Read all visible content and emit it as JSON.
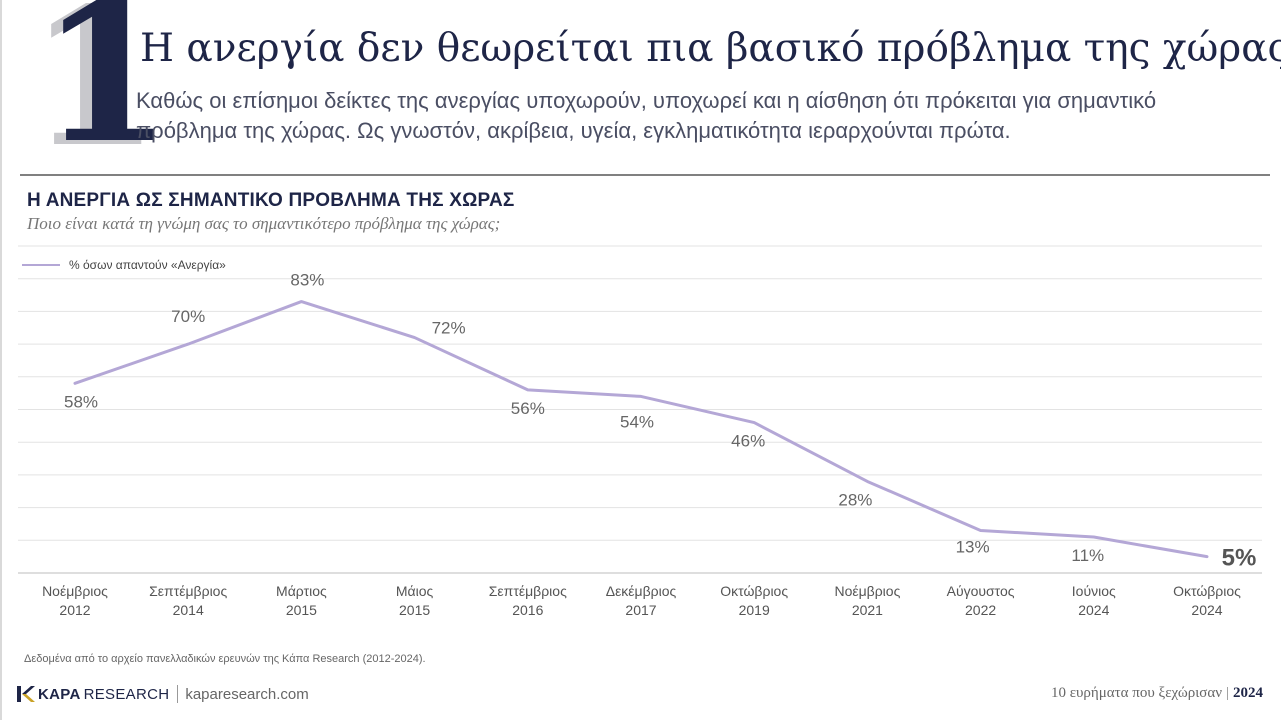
{
  "page": {
    "numeral": "1",
    "headline": "Η ανεργία δεν θεωρείται πια βασικό πρόβλημα της χώρας",
    "lede": "Καθώς οι επίσημοι δείκτες της ανεργίας υποχωρούν, υποχωρεί και η αίσθηση ότι πρόκειται για σημαντικό πρόβλημα της χώρας. Ως γνωστόν, ακρίβεια, υγεία, εγκληματικότητα ιεραρχούνται πρώτα.",
    "footnote": "Δεδομένα από το αρχείο πανελλαδικών ερευνών της Κάπα Research (2012-2024).",
    "brand_kapa": "KAPA",
    "brand_research": "RESEARCH",
    "brand_url": "kaparesearch.com",
    "footer_series": "10 ευρήματα που ξεχώρισαν",
    "footer_separator": "|",
    "footer_year": "2024"
  },
  "colors": {
    "navy": "#1e2547",
    "line": "#b4a7d6",
    "grid": "#e3e3e3",
    "label": "#666666"
  },
  "chart_data": {
    "type": "line",
    "title": "Η ΑΝΕΡΓΙΑ ΩΣ ΣΗΜΑΝΤΙΚΟ ΠΡΟΒΛΗΜΑ ΤΗΣ ΧΩΡΑΣ",
    "subtitle": "Ποιο είναι κατά τη γνώμη σας το σημαντικότερο πρόβλημα της χώρας;",
    "categories": [
      [
        "Νοέμβριος",
        "2012"
      ],
      [
        "Σεπτέμβριος",
        "2014"
      ],
      [
        "Μάρτιος",
        "2015"
      ],
      [
        "Μάιος",
        "2015"
      ],
      [
        "Σεπτέμβριος",
        "2016"
      ],
      [
        "Δεκέμβριος",
        "2017"
      ],
      [
        "Οκτώβριος",
        "2019"
      ],
      [
        "Νοέμβριος",
        "2021"
      ],
      [
        "Αύγουστος",
        "2022"
      ],
      [
        "Ιούνιος",
        "2024"
      ],
      [
        "Οκτώβριος",
        "2024"
      ]
    ],
    "series": [
      {
        "name": "% όσων απαντούν «Ανεργία»",
        "values": [
          58,
          70,
          83,
          72,
          56,
          54,
          46,
          28,
          13,
          11,
          5
        ],
        "labels": [
          "58%",
          "70%",
          "83%",
          "72%",
          "56%",
          "54%",
          "46%",
          "28%",
          "13%",
          "11%",
          "5%"
        ]
      }
    ],
    "ylim": [
      0,
      100
    ],
    "grid": true,
    "legend": "top-left",
    "xlabel": "",
    "ylabel": ""
  }
}
